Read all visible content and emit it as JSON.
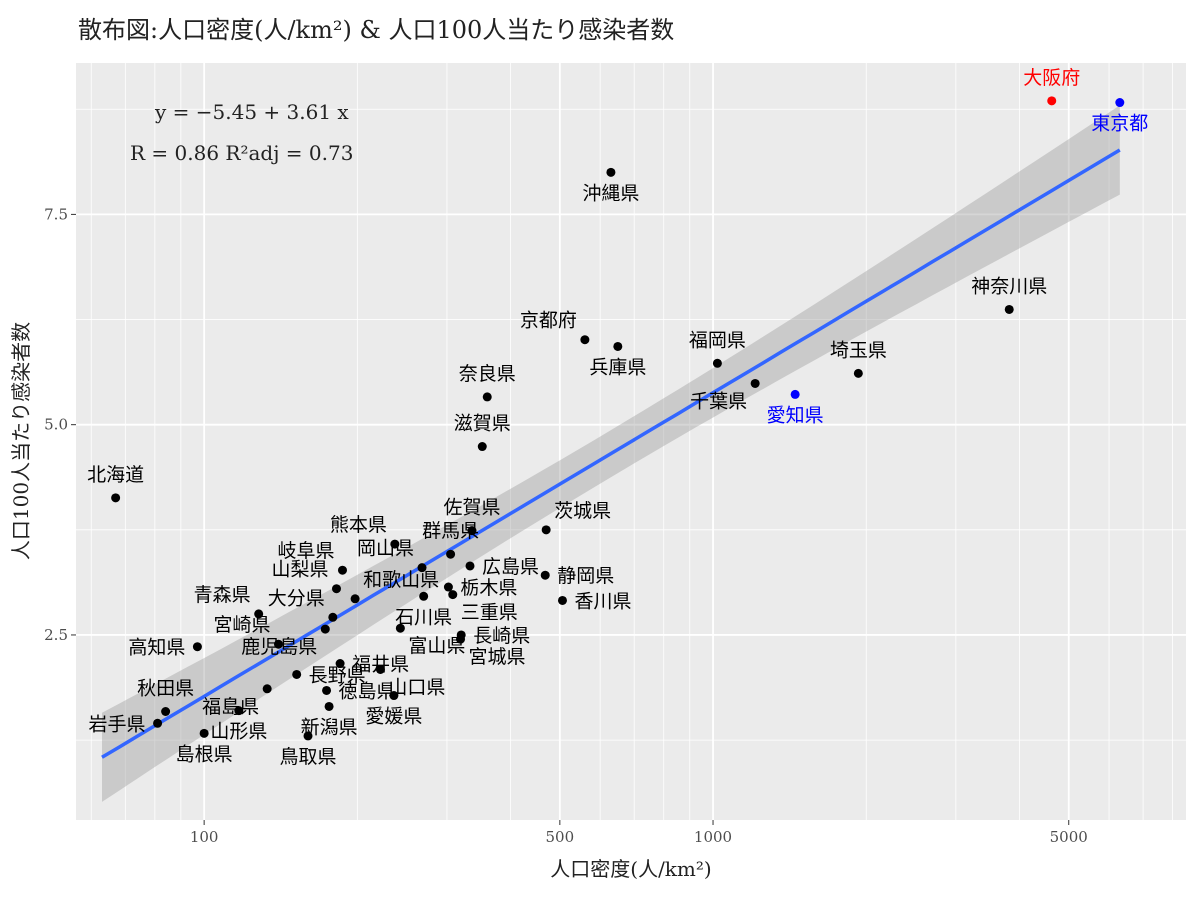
{
  "chart_data": {
    "type": "scatter",
    "title": "散布図:人口密度(人/km²) & 人口100人当たり感染者数",
    "xlabel": "人口密度(人/km²)",
    "ylabel": "人口100人当たり感染者数",
    "x_scale": "log10",
    "xlim": [
      56,
      8500
    ],
    "ylim": [
      0.3,
      9.3
    ],
    "x_ticks": [
      {
        "value": 100,
        "label": "100"
      },
      {
        "value": 500,
        "label": "500"
      },
      {
        "value": 1000,
        "label": "1000"
      },
      {
        "value": 5000,
        "label": "5000"
      }
    ],
    "y_ticks": [
      {
        "value": 2.5,
        "label": "2.5"
      },
      {
        "value": 5.0,
        "label": "5.0"
      },
      {
        "value": 7.5,
        "label": "7.5"
      }
    ],
    "grid": true,
    "regression": {
      "equation": "y = −5.45 + 3.61 x",
      "stats": "R = 0.86    R²adj = 0.73",
      "intercept": -5.45,
      "slope": 3.61,
      "x_range": [
        63,
        6300
      ],
      "band_halfwidth_ends": 0.53,
      "band_halfwidth_mid": 0.28,
      "color": "#3366FF"
    },
    "points": [
      {
        "name": "大阪府",
        "x": 4630,
        "y": 8.85,
        "color": "#FF0000",
        "label_color": "#FF0000",
        "label_pos": "above"
      },
      {
        "name": "東京都",
        "x": 6300,
        "y": 8.83,
        "color": "#0000FF",
        "label_color": "#0000FF",
        "label_pos": "below"
      },
      {
        "name": "沖縄県",
        "x": 630,
        "y": 8.0,
        "color": "#000000",
        "label_color": "#000000",
        "label_pos": "below"
      },
      {
        "name": "神奈川県",
        "x": 3820,
        "y": 6.37,
        "color": "#000000",
        "label_color": "#000000",
        "label_pos": "above"
      },
      {
        "name": "京都府",
        "x": 560,
        "y": 6.01,
        "color": "#000000",
        "label_color": "#000000",
        "label_pos": "above-left"
      },
      {
        "name": "兵庫県",
        "x": 650,
        "y": 5.93,
        "color": "#000000",
        "label_color": "#000000",
        "label_pos": "below"
      },
      {
        "name": "福岡県",
        "x": 1020,
        "y": 5.73,
        "color": "#000000",
        "label_color": "#000000",
        "label_pos": "above"
      },
      {
        "name": "埼玉県",
        "x": 1930,
        "y": 5.61,
        "color": "#000000",
        "label_color": "#000000",
        "label_pos": "above"
      },
      {
        "name": "千葉県",
        "x": 1210,
        "y": 5.49,
        "color": "#000000",
        "label_color": "#000000",
        "label_pos": "below-left"
      },
      {
        "name": "愛知県",
        "x": 1450,
        "y": 5.36,
        "color": "#0000FF",
        "label_color": "#0000FF",
        "label_pos": "below"
      },
      {
        "name": "奈良県",
        "x": 360,
        "y": 5.33,
        "color": "#000000",
        "label_color": "#000000",
        "label_pos": "above"
      },
      {
        "name": "滋賀県",
        "x": 352,
        "y": 4.74,
        "color": "#000000",
        "label_color": "#000000",
        "label_pos": "above"
      },
      {
        "name": "北海道",
        "x": 67,
        "y": 4.13,
        "color": "#000000",
        "label_color": "#000000",
        "label_pos": "above"
      },
      {
        "name": "茨城県",
        "x": 470,
        "y": 3.75,
        "color": "#000000",
        "label_color": "#000000",
        "label_pos": "above-right"
      },
      {
        "name": "佐賀県",
        "x": 336,
        "y": 3.74,
        "color": "#000000",
        "label_color": "#000000",
        "label_pos": "above"
      },
      {
        "name": "熊本県",
        "x": 237,
        "y": 3.58,
        "color": "#000000",
        "label_color": "#000000",
        "label_pos": "above-left"
      },
      {
        "name": "群馬県",
        "x": 305,
        "y": 3.46,
        "color": "#000000",
        "label_color": "#000000",
        "label_pos": "above"
      },
      {
        "name": "広島県",
        "x": 333,
        "y": 3.32,
        "color": "#000000",
        "label_color": "#000000",
        "label_pos": "right"
      },
      {
        "name": "岡山県",
        "x": 268,
        "y": 3.3,
        "color": "#000000",
        "label_color": "#000000",
        "label_pos": "above-left"
      },
      {
        "name": "岐阜県",
        "x": 187,
        "y": 3.27,
        "color": "#000000",
        "label_color": "#000000",
        "label_pos": "above-left"
      },
      {
        "name": "静岡県",
        "x": 468,
        "y": 3.21,
        "color": "#000000",
        "label_color": "#000000",
        "label_pos": "right"
      },
      {
        "name": "山梨県",
        "x": 182,
        "y": 3.05,
        "color": "#000000",
        "label_color": "#000000",
        "label_pos": "above-left"
      },
      {
        "name": "栃木県",
        "x": 302,
        "y": 3.07,
        "color": "#000000",
        "label_color": "#000000",
        "label_pos": "right"
      },
      {
        "name": "和歌山県",
        "x": 198,
        "y": 2.93,
        "color": "#000000",
        "label_color": "#000000",
        "label_pos": "above-right"
      },
      {
        "name": "石川県",
        "x": 270,
        "y": 2.96,
        "color": "#000000",
        "label_color": "#000000",
        "label_pos": "below"
      },
      {
        "name": "三重県",
        "x": 308,
        "y": 2.98,
        "color": "#000000",
        "label_color": "#000000",
        "label_pos": "below-right"
      },
      {
        "name": "香川県",
        "x": 506,
        "y": 2.91,
        "color": "#000000",
        "label_color": "#000000",
        "label_pos": "right"
      },
      {
        "name": "青森県",
        "x": 128,
        "y": 2.75,
        "color": "#000000",
        "label_color": "#000000",
        "label_pos": "above-left"
      },
      {
        "name": "大分県",
        "x": 179,
        "y": 2.71,
        "color": "#000000",
        "label_color": "#000000",
        "label_pos": "above-left"
      },
      {
        "name": "富山県",
        "x": 243,
        "y": 2.58,
        "color": "#000000",
        "label_color": "#000000",
        "label_pos": "below-right"
      },
      {
        "name": "鹿児島県",
        "x": 173,
        "y": 2.57,
        "color": "#000000",
        "label_color": "#000000",
        "label_pos": "below-left"
      },
      {
        "name": "長崎県",
        "x": 320,
        "y": 2.5,
        "color": "#000000",
        "label_color": "#000000",
        "label_pos": "right"
      },
      {
        "name": "宮城県",
        "x": 319,
        "y": 2.45,
        "color": "#000000",
        "label_color": "#000000",
        "label_pos": "below-right"
      },
      {
        "name": "宮崎県",
        "x": 140,
        "y": 2.39,
        "color": "#000000",
        "label_color": "#000000",
        "label_pos": "above-left"
      },
      {
        "name": "高知県",
        "x": 97,
        "y": 2.36,
        "color": "#000000",
        "label_color": "#000000",
        "label_pos": "left"
      },
      {
        "name": "福井県",
        "x": 185,
        "y": 2.16,
        "color": "#000000",
        "label_color": "#000000",
        "label_pos": "right"
      },
      {
        "name": "長野県",
        "x": 152,
        "y": 2.03,
        "color": "#000000",
        "label_color": "#000000",
        "label_pos": "right"
      },
      {
        "name": "山口県",
        "x": 222,
        "y": 2.09,
        "color": "#000000",
        "label_color": "#000000",
        "label_pos": "below-right"
      },
      {
        "name": "秋田県",
        "x": 84,
        "y": 1.59,
        "color": "#000000",
        "label_color": "#000000",
        "label_pos": "above"
      },
      {
        "name": "福島県",
        "x": 133,
        "y": 1.86,
        "color": "#000000",
        "label_color": "#000000",
        "label_pos": "below-left"
      },
      {
        "name": "徳島県",
        "x": 174,
        "y": 1.84,
        "color": "#000000",
        "label_color": "#000000",
        "label_pos": "right"
      },
      {
        "name": "愛媛県",
        "x": 236,
        "y": 1.78,
        "color": "#000000",
        "label_color": "#000000",
        "label_pos": "below"
      },
      {
        "name": "新潟県",
        "x": 176,
        "y": 1.65,
        "color": "#000000",
        "label_color": "#000000",
        "label_pos": "below"
      },
      {
        "name": "岩手県",
        "x": 81,
        "y": 1.45,
        "color": "#000000",
        "label_color": "#000000",
        "label_pos": "left"
      },
      {
        "name": "鳥取県",
        "x": 160,
        "y": 1.3,
        "color": "#000000",
        "label_color": "#000000",
        "label_pos": "below"
      },
      {
        "name": "山形県",
        "x": 117,
        "y": 1.6,
        "color": "#000000",
        "label_color": "#000000",
        "label_pos": "below"
      },
      {
        "name": "島根県",
        "x": 100,
        "y": 1.33,
        "color": "#000000",
        "label_color": "#000000",
        "label_pos": "below"
      }
    ]
  }
}
